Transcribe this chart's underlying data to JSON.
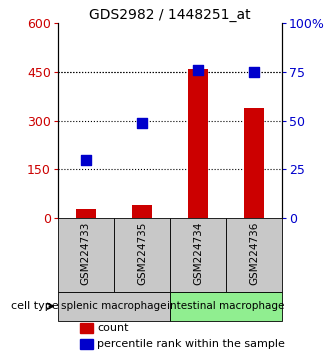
{
  "title": "GDS2982 / 1448251_at",
  "samples": [
    "GSM224733",
    "GSM224735",
    "GSM224734",
    "GSM224736"
  ],
  "counts": [
    30,
    42,
    460,
    340
  ],
  "percentiles": [
    30,
    49,
    76,
    75
  ],
  "ylim_left": [
    0,
    600
  ],
  "ylim_right": [
    0,
    100
  ],
  "yticks_left": [
    0,
    150,
    300,
    450,
    600
  ],
  "yticks_right": [
    0,
    25,
    50,
    75,
    100
  ],
  "ytick_labels_right": [
    "0",
    "25",
    "50",
    "75",
    "100%"
  ],
  "bar_color": "#cc0000",
  "dot_color": "#0000cc",
  "groups": [
    {
      "label": "splenic macrophage",
      "indices": [
        0,
        1
      ],
      "color": "#c8c8c8"
    },
    {
      "label": "intestinal macrophage",
      "indices": [
        2,
        3
      ],
      "color": "#90ee90"
    }
  ],
  "sample_box_color": "#c8c8c8",
  "cell_type_label": "cell type",
  "legend_count_label": "count",
  "legend_pct_label": "percentile rank within the sample",
  "title_fontsize": 10,
  "axis_label_color_left": "#cc0000",
  "axis_label_color_right": "#0000cc",
  "bar_width": 0.35,
  "dot_size": 55,
  "dotted_line_color": "#000000",
  "grid_yticks": [
    150,
    300,
    450
  ]
}
